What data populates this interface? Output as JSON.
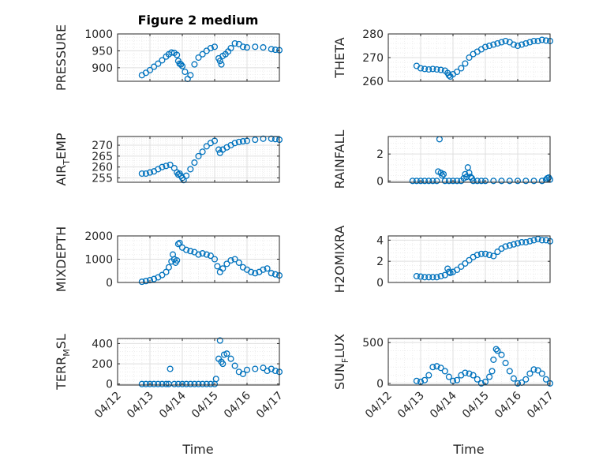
{
  "chart_data": [
    {
      "type": "scatter",
      "title": "Figure 2 medium",
      "ylabel": "PRESSURE",
      "xlim": [
        "04/12",
        "04/17"
      ],
      "ylim": [
        860,
        1000
      ],
      "yticks": [
        900,
        950,
        1000
      ],
      "xticks": [
        "04/12",
        "04/13",
        "04/14",
        "04/15",
        "04/16",
        "04/17"
      ],
      "grid": true,
      "x": [
        "04/12 18:00",
        "04/12 21:00",
        "04/13 00:00",
        "04/13 03:00",
        "04/13 06:00",
        "04/13 09:00",
        "04/13 12:00",
        "04/13 14:00",
        "04/13 16:00",
        "04/13 18:00",
        "04/13 20:00",
        "04/13 21:00",
        "04/13 22:00",
        "04/13 23:00",
        "04/14 00:00",
        "04/14 02:00",
        "04/14 04:00",
        "04/14 06:00",
        "04/14 09:00",
        "04/14 12:00",
        "04/14 15:00",
        "04/14 18:00",
        "04/14 21:00",
        "04/15 00:00",
        "04/15 03:00",
        "04/15 04:00",
        "04/15 05:00",
        "04/15 06:00",
        "04/15 08:00",
        "04/15 10:00",
        "04/15 12:00",
        "04/15 15:00",
        "04/15 18:00",
        "04/15 21:00",
        "04/16 00:00",
        "04/16 06:00",
        "04/16 12:00",
        "04/16 18:00",
        "04/16 21:00",
        "04/17 00:00"
      ],
      "y": [
        878,
        885,
        893,
        903,
        912,
        922,
        933,
        940,
        945,
        944,
        938,
        920,
        912,
        910,
        905,
        888,
        867,
        878,
        910,
        930,
        940,
        950,
        958,
        962,
        928,
        920,
        910,
        935,
        940,
        948,
        958,
        972,
        970,
        962,
        960,
        962,
        960,
        955,
        953,
        952
      ]
    },
    {
      "type": "scatter",
      "title": "",
      "ylabel": "THETA",
      "xlim": [
        "04/12",
        "04/17"
      ],
      "ylim": [
        260,
        280
      ],
      "yticks": [
        260,
        270,
        280
      ],
      "xticks": [
        "04/12",
        "04/13",
        "04/14",
        "04/15",
        "04/16",
        "04/17"
      ],
      "grid": true,
      "x": [
        "04/12 21:00",
        "04/13 00:00",
        "04/13 03:00",
        "04/13 06:00",
        "04/13 09:00",
        "04/13 12:00",
        "04/13 15:00",
        "04/13 18:00",
        "04/13 20:00",
        "04/13 21:00",
        "04/13 22:00",
        "04/14 00:00",
        "04/14 03:00",
        "04/14 06:00",
        "04/14 09:00",
        "04/14 12:00",
        "04/14 15:00",
        "04/14 18:00",
        "04/14 21:00",
        "04/15 00:00",
        "04/15 03:00",
        "04/15 06:00",
        "04/15 09:00",
        "04/15 12:00",
        "04/15 15:00",
        "04/15 18:00",
        "04/15 21:00",
        "04/16 00:00",
        "04/16 03:00",
        "04/16 06:00",
        "04/16 09:00",
        "04/16 12:00",
        "04/16 15:00",
        "04/16 18:00",
        "04/16 21:00",
        "04/17 00:00"
      ],
      "y": [
        266.5,
        265.5,
        265.2,
        265,
        265.2,
        265,
        264.8,
        264.5,
        263.5,
        262.5,
        262,
        263,
        264,
        265.5,
        267.5,
        270,
        271.5,
        272.5,
        273.5,
        274.5,
        275,
        275.5,
        276,
        276.5,
        277,
        276.5,
        275.5,
        275,
        275.5,
        276,
        276.5,
        277,
        277,
        277.5,
        277.2,
        277
      ]
    },
    {
      "type": "scatter",
      "title": "",
      "ylabel": "AIR_TEMP",
      "xlim": [
        "04/12",
        "04/17"
      ],
      "ylim": [
        253,
        274
      ],
      "yticks": [
        255,
        260,
        265,
        270
      ],
      "xticks": [
        "04/12",
        "04/13",
        "04/14",
        "04/15",
        "04/16",
        "04/17"
      ],
      "grid": true,
      "x": [
        "04/12 18:00",
        "04/12 21:00",
        "04/13 00:00",
        "04/13 03:00",
        "04/13 06:00",
        "04/13 09:00",
        "04/13 12:00",
        "04/13 15:00",
        "04/13 18:00",
        "04/13 20:00",
        "04/13 21:00",
        "04/13 22:00",
        "04/13 23:00",
        "04/14 00:00",
        "04/14 01:00",
        "04/14 03:00",
        "04/14 06:00",
        "04/14 09:00",
        "04/14 12:00",
        "04/14 15:00",
        "04/14 18:00",
        "04/14 21:00",
        "04/15 00:00",
        "04/15 03:00",
        "04/15 04:00",
        "04/15 06:00",
        "04/15 09:00",
        "04/15 12:00",
        "04/15 15:00",
        "04/15 18:00",
        "04/15 21:00",
        "04/16 00:00",
        "04/16 06:00",
        "04/16 12:00",
        "04/16 18:00",
        "04/16 21:00",
        "04/17 00:00"
      ],
      "y": [
        257,
        257,
        257.5,
        258,
        259,
        260,
        260.5,
        261,
        259.5,
        257.5,
        256.5,
        257,
        256,
        255,
        254,
        256,
        259,
        262,
        265,
        267,
        269.5,
        271,
        272,
        268,
        266.5,
        268,
        269,
        270,
        271,
        271.5,
        271.8,
        272,
        272.5,
        273,
        273,
        272.8,
        272.5
      ]
    },
    {
      "type": "scatter",
      "title": "",
      "ylabel": "RAINFALL",
      "xlim": [
        "04/12",
        "04/17"
      ],
      "ylim": [
        -0.1,
        3.3
      ],
      "yticks": [
        0,
        2
      ],
      "xticks": [
        "04/12",
        "04/13",
        "04/14",
        "04/15",
        "04/16",
        "04/17"
      ],
      "grid": true,
      "x": [
        "04/12 18:00",
        "04/12 21:00",
        "04/13 00:00",
        "04/13 03:00",
        "04/13 06:00",
        "04/13 09:00",
        "04/13 12:00",
        "04/13 13:00",
        "04/13 14:00",
        "04/13 15:00",
        "04/13 16:00",
        "04/13 17:00",
        "04/13 18:00",
        "04/13 21:00",
        "04/14 00:00",
        "04/14 03:00",
        "04/14 06:00",
        "04/14 08:00",
        "04/14 09:00",
        "04/14 10:00",
        "04/14 11:00",
        "04/14 12:00",
        "04/14 13:00",
        "04/14 14:00",
        "04/14 15:00",
        "04/14 18:00",
        "04/14 21:00",
        "04/15 00:00",
        "04/15 06:00",
        "04/15 12:00",
        "04/15 18:00",
        "04/16 00:00",
        "04/16 06:00",
        "04/16 12:00",
        "04/16 18:00",
        "04/16 21:00",
        "04/16 22:00",
        "04/16 23:00",
        "04/17 00:00"
      ],
      "y": [
        0,
        0,
        0,
        0,
        0,
        0,
        0,
        0.7,
        3.1,
        0.6,
        0.4,
        0.5,
        0,
        0,
        0,
        0,
        0,
        0.2,
        0.5,
        0.3,
        1.0,
        0.6,
        0.3,
        0.2,
        0,
        0,
        0,
        0,
        0,
        0,
        0,
        0,
        0,
        0,
        0,
        0.1,
        0.2,
        0.25,
        0.1
      ]
    },
    {
      "type": "scatter",
      "title": "",
      "ylabel": "MIXDEPTH",
      "xlim": [
        "04/12",
        "04/17"
      ],
      "ylim": [
        0,
        2000
      ],
      "yticks": [
        0,
        1000,
        2000
      ],
      "xticks": [
        "04/12",
        "04/13",
        "04/14",
        "04/15",
        "04/16",
        "04/17"
      ],
      "grid": true,
      "x": [
        "04/12 18:00",
        "04/12 21:00",
        "04/13 00:00",
        "04/13 03:00",
        "04/13 06:00",
        "04/13 09:00",
        "04/13 12:00",
        "04/13 14:00",
        "04/13 16:00",
        "04/13 17:00",
        "04/13 18:00",
        "04/13 19:00",
        "04/13 20:00",
        "04/13 21:00",
        "04/13 22:00",
        "04/14 00:00",
        "04/14 03:00",
        "04/14 06:00",
        "04/14 09:00",
        "04/14 12:00",
        "04/14 15:00",
        "04/14 18:00",
        "04/14 21:00",
        "04/15 00:00",
        "04/15 02:00",
        "04/15 04:00",
        "04/15 06:00",
        "04/15 09:00",
        "04/15 12:00",
        "04/15 15:00",
        "04/15 18:00",
        "04/15 21:00",
        "04/16 00:00",
        "04/16 03:00",
        "04/16 06:00",
        "04/16 09:00",
        "04/16 12:00",
        "04/16 15:00",
        "04/16 18:00",
        "04/16 21:00",
        "04/17 00:00"
      ],
      "y": [
        30,
        60,
        100,
        150,
        220,
        320,
        450,
        650,
        900,
        1200,
        1000,
        850,
        950,
        1650,
        1700,
        1500,
        1400,
        1350,
        1300,
        1200,
        1250,
        1200,
        1150,
        1000,
        700,
        450,
        600,
        800,
        950,
        1000,
        850,
        650,
        550,
        450,
        400,
        450,
        550,
        600,
        400,
        350,
        300
      ]
    },
    {
      "type": "scatter",
      "title": "",
      "ylabel": "H2OMIXRA",
      "xlim": [
        "04/12",
        "04/17"
      ],
      "ylim": [
        0,
        4.4
      ],
      "yticks": [
        0,
        2,
        4
      ],
      "xticks": [
        "04/12",
        "04/13",
        "04/14",
        "04/15",
        "04/16",
        "04/17"
      ],
      "grid": true,
      "x": [
        "04/12 21:00",
        "04/13 00:00",
        "04/13 03:00",
        "04/13 06:00",
        "04/13 09:00",
        "04/13 12:00",
        "04/13 15:00",
        "04/13 18:00",
        "04/13 20:00",
        "04/13 21:00",
        "04/13 22:00",
        "04/14 00:00",
        "04/14 03:00",
        "04/14 06:00",
        "04/14 09:00",
        "04/14 12:00",
        "04/14 15:00",
        "04/14 18:00",
        "04/14 21:00",
        "04/15 00:00",
        "04/15 03:00",
        "04/15 06:00",
        "04/15 09:00",
        "04/15 12:00",
        "04/15 15:00",
        "04/15 18:00",
        "04/15 21:00",
        "04/16 00:00",
        "04/16 03:00",
        "04/16 06:00",
        "04/16 09:00",
        "04/16 12:00",
        "04/16 15:00",
        "04/16 18:00",
        "04/16 21:00",
        "04/17 00:00"
      ],
      "y": [
        0.6,
        0.55,
        0.5,
        0.5,
        0.5,
        0.5,
        0.6,
        0.7,
        1.3,
        1.0,
        0.9,
        1.0,
        1.2,
        1.5,
        1.8,
        2.1,
        2.4,
        2.6,
        2.7,
        2.7,
        2.6,
        2.5,
        2.9,
        3.2,
        3.4,
        3.5,
        3.6,
        3.7,
        3.8,
        3.8,
        3.9,
        4.0,
        4.1,
        4.0,
        4.0,
        3.9
      ]
    },
    {
      "type": "scatter",
      "title": "",
      "ylabel": "TERR_MSL",
      "xlim": [
        "04/12",
        "04/17"
      ],
      "ylim": [
        -10,
        450
      ],
      "yticks": [
        0,
        200,
        400
      ],
      "xticks": [
        "04/12",
        "04/13",
        "04/14",
        "04/15",
        "04/16",
        "04/17"
      ],
      "grid": true,
      "x": [
        "04/12 18:00",
        "04/12 21:00",
        "04/13 00:00",
        "04/13 03:00",
        "04/13 06:00",
        "04/13 09:00",
        "04/13 12:00",
        "04/13 14:00",
        "04/13 15:00",
        "04/13 18:00",
        "04/13 21:00",
        "04/14 00:00",
        "04/14 03:00",
        "04/14 06:00",
        "04/14 09:00",
        "04/14 12:00",
        "04/14 15:00",
        "04/14 18:00",
        "04/14 21:00",
        "04/15 00:00",
        "04/15 01:00",
        "04/15 03:00",
        "04/15 04:00",
        "04/15 05:00",
        "04/15 06:00",
        "04/15 07:00",
        "04/15 09:00",
        "04/15 12:00",
        "04/15 15:00",
        "04/15 18:00",
        "04/15 21:00",
        "04/16 00:00",
        "04/16 06:00",
        "04/16 12:00",
        "04/16 15:00",
        "04/16 18:00",
        "04/16 21:00",
        "04/17 00:00"
      ],
      "y": [
        0,
        0,
        0,
        0,
        0,
        0,
        0,
        0,
        150,
        0,
        0,
        0,
        0,
        0,
        0,
        0,
        0,
        0,
        0,
        0,
        50,
        250,
        430,
        220,
        200,
        290,
        300,
        250,
        180,
        120,
        100,
        140,
        150,
        160,
        130,
        150,
        130,
        120
      ]
    },
    {
      "type": "scatter",
      "title": "",
      "ylabel": "SUN_FLUX",
      "xlim": [
        "04/12",
        "04/17"
      ],
      "ylim": [
        -20,
        550
      ],
      "yticks": [
        0,
        500
      ],
      "xticks": [
        "04/12",
        "04/13",
        "04/14",
        "04/15",
        "04/16",
        "04/17"
      ],
      "grid": true,
      "x": [
        "04/12 21:00",
        "04/13 00:00",
        "04/13 03:00",
        "04/13 06:00",
        "04/13 09:00",
        "04/13 12:00",
        "04/13 15:00",
        "04/13 18:00",
        "04/13 21:00",
        "04/14 00:00",
        "04/14 03:00",
        "04/14 06:00",
        "04/14 09:00",
        "04/14 12:00",
        "04/14 15:00",
        "04/14 18:00",
        "04/14 21:00",
        "04/15 00:00",
        "04/15 03:00",
        "04/15 05:00",
        "04/15 06:00",
        "04/15 08:00",
        "04/15 09:00",
        "04/15 12:00",
        "04/15 15:00",
        "04/15 18:00",
        "04/15 21:00",
        "04/16 00:00",
        "04/16 03:00",
        "04/16 06:00",
        "04/16 09:00",
        "04/16 12:00",
        "04/16 15:00",
        "04/16 18:00",
        "04/16 21:00",
        "04/17 00:00"
      ],
      "y": [
        30,
        20,
        40,
        100,
        200,
        210,
        190,
        150,
        80,
        30,
        40,
        100,
        130,
        120,
        100,
        50,
        0,
        20,
        80,
        150,
        290,
        420,
        400,
        350,
        250,
        150,
        60,
        0,
        10,
        50,
        120,
        170,
        160,
        120,
        50,
        0
      ]
    }
  ],
  "xlabel": "Time"
}
